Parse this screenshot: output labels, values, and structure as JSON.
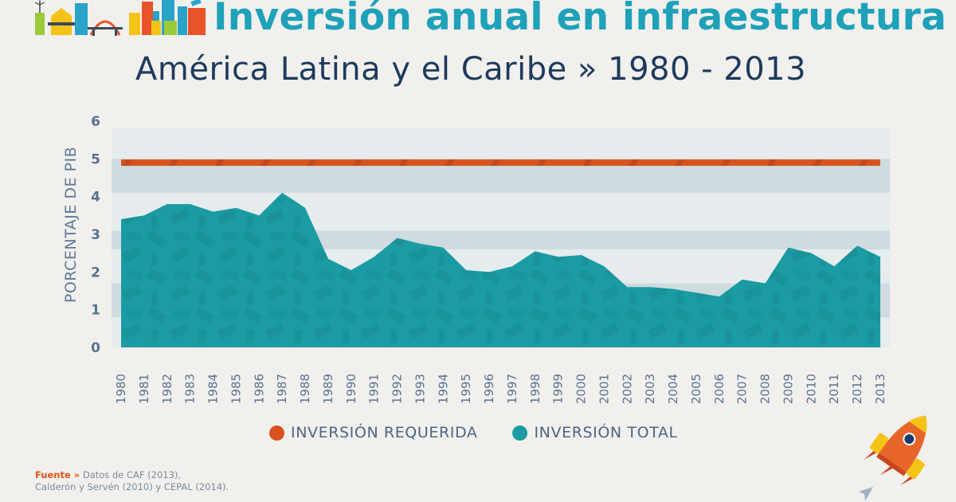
{
  "header": {
    "title": "Inversión anual en infraestructura",
    "subtitle": "América Latina y el Caribe » 1980 - 2013",
    "illustration": "city-skyline-icon"
  },
  "legend": {
    "items": [
      {
        "label": "INVERSIÓN REQUERIDA",
        "color": "#d9531e"
      },
      {
        "label": "INVERSIÓN TOTAL",
        "color": "#1b9ba3"
      }
    ]
  },
  "source": {
    "key": "Fuente »",
    "line1": " Datos de CAF (2013),",
    "line2": "Calderón y Servén (2010) y CEPAL (2014)."
  },
  "decorations": {
    "rocket": "rocket-icon",
    "paper_plane": "paper-plane-icon"
  },
  "colors": {
    "title": "#1ea1b9",
    "subtitle": "#1d3a5c",
    "required": "#d9531e",
    "total": "#1b9ba3",
    "band_dark": "#cfdbdf",
    "band_light": "#e3eaec"
  },
  "chart_data": {
    "type": "area",
    "title": "Inversión anual en infraestructura",
    "subtitle": "América Latina y el Caribe » 1980 - 2013",
    "xlabel": "",
    "ylabel": "PORCENTAJE DE PIB",
    "ylim": [
      0,
      6
    ],
    "yticks": [
      "0",
      "1",
      "2",
      "3",
      "4",
      "5",
      "6"
    ],
    "grid": "horizontal-bands",
    "legend_position": "bottom-center",
    "x": [
      "1980",
      "1981",
      "1982",
      "1983",
      "1984",
      "1985",
      "1986",
      "1987",
      "1988",
      "1989",
      "1990",
      "1991",
      "1992",
      "1993",
      "1994",
      "1995",
      "1996",
      "1997",
      "1998",
      "1999",
      "2000",
      "2001",
      "2002",
      "2003",
      "2004",
      "2005",
      "2006",
      "2007",
      "2008",
      "2009",
      "2010",
      "2011",
      "2012",
      "2013"
    ],
    "series": [
      {
        "name": "INVERSIÓN REQUERIDA",
        "type": "line",
        "values": [
          4.9,
          4.9,
          4.9,
          4.9,
          4.9,
          4.9,
          4.9,
          4.9,
          4.9,
          4.9,
          4.9,
          4.9,
          4.9,
          4.9,
          4.9,
          4.9,
          4.9,
          4.9,
          4.9,
          4.9,
          4.9,
          4.9,
          4.9,
          4.9,
          4.9,
          4.9,
          4.9,
          4.9,
          4.9,
          4.9,
          4.9,
          4.9,
          4.9,
          4.9
        ]
      },
      {
        "name": "INVERSIÓN TOTAL",
        "type": "area",
        "values": [
          3.4,
          3.5,
          3.8,
          3.8,
          3.6,
          3.7,
          3.5,
          4.1,
          3.7,
          2.35,
          2.05,
          2.4,
          2.9,
          2.75,
          2.65,
          2.05,
          2.0,
          2.15,
          2.55,
          2.4,
          2.45,
          2.15,
          1.6,
          1.6,
          1.55,
          1.45,
          1.35,
          1.8,
          1.7,
          2.65,
          2.5,
          2.15,
          2.7,
          2.4
        ]
      }
    ]
  }
}
